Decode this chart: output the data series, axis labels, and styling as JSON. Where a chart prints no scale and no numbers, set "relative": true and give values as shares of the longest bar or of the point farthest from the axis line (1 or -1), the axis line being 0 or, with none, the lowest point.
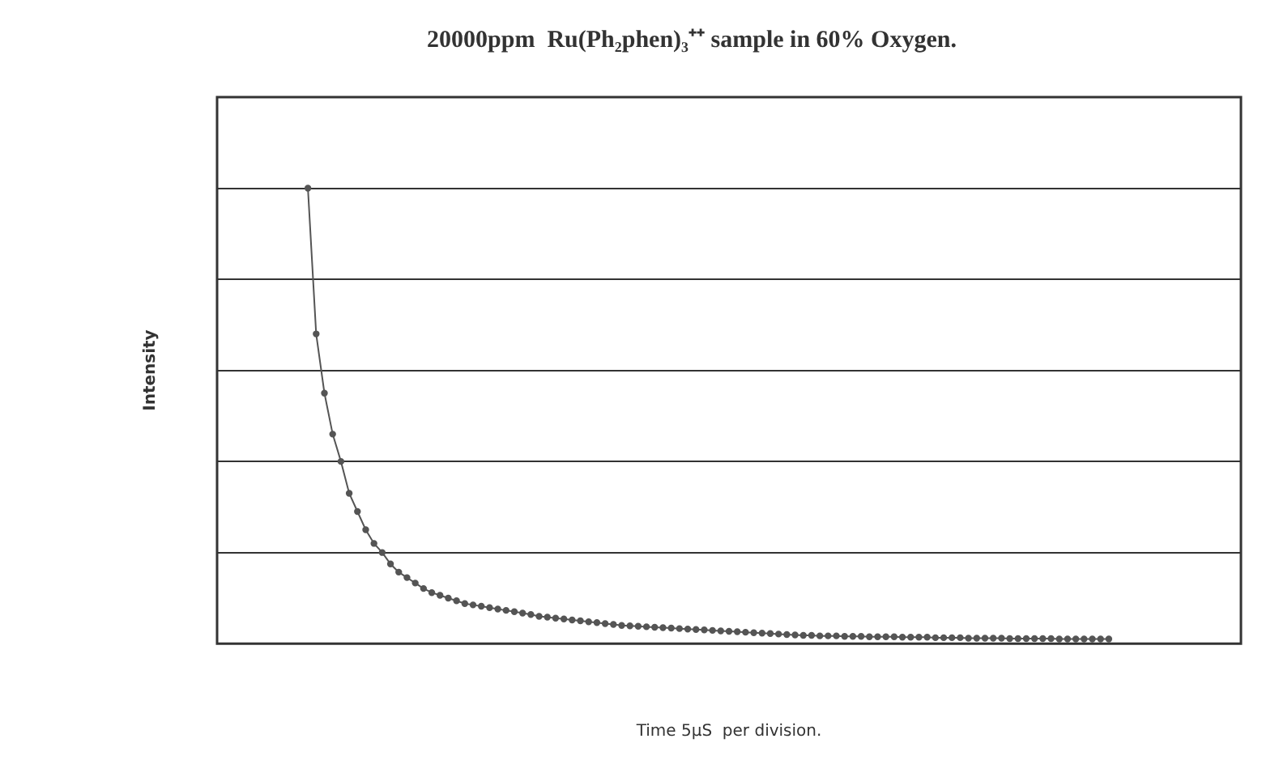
{
  "chart_data": {
    "type": "line",
    "title": "20000ppm  Ru(Ph₂phen)₃⁺⁺ sample in 60% Oxygen.",
    "xlabel": "Time 5µS  per division.",
    "ylabel": "Intensity",
    "relative": true,
    "grid": "y",
    "legend": false,
    "marker": "circle",
    "categories": [
      null,
      null,
      null,
      null,
      null,
      null,
      null,
      null,
      null,
      null,
      null,
      null,
      null,
      null,
      null,
      null,
      null,
      null,
      null,
      null,
      null,
      null,
      null,
      null,
      null,
      null,
      null,
      null,
      null,
      null,
      null,
      null,
      null,
      null,
      null,
      null,
      null,
      null,
      null,
      null,
      null,
      null,
      null,
      null,
      null,
      null,
      null,
      null,
      null,
      null,
      null,
      null,
      null,
      null,
      null,
      null,
      null,
      null,
      null,
      null,
      null,
      null,
      null,
      null,
      null,
      null,
      null,
      null,
      null,
      null,
      null,
      null,
      null,
      null,
      null,
      null,
      null,
      null,
      null,
      null,
      null,
      null,
      null,
      null,
      null,
      null,
      null,
      null,
      null,
      null,
      null,
      null,
      null,
      null,
      null,
      null,
      null,
      null,
      null,
      null,
      null,
      null,
      null,
      null,
      null,
      null,
      null,
      null,
      null,
      null,
      null,
      null,
      null,
      null,
      null,
      null,
      null,
      null,
      null,
      null,
      null,
      null,
      null,
      null,
      null
    ],
    "series": [
      {
        "color": "#555555",
        "values": [
          null,
          null,
          null,
          null,
          null,
          null,
          null,
          null,
          null,
          null,
          null,
          1.0,
          0.68,
          0.55,
          0.46,
          0.4,
          0.33,
          0.29,
          0.25,
          0.22,
          0.2,
          0.175,
          0.157,
          0.145,
          0.133,
          0.121,
          0.112,
          0.106,
          0.1,
          0.094,
          0.088,
          0.085,
          0.082,
          0.079,
          0.076,
          0.073,
          0.07,
          0.067,
          0.064,
          0.06,
          0.058,
          0.056,
          0.054,
          0.052,
          0.05,
          0.048,
          0.046,
          0.044,
          0.042,
          0.04,
          0.039,
          0.038,
          0.037,
          0.036,
          0.035,
          0.034,
          0.033,
          0.032,
          0.031,
          0.03,
          0.029,
          0.028,
          0.027,
          0.026,
          0.025,
          0.024,
          0.023,
          0.022,
          0.021,
          0.02,
          0.019,
          0.018,
          0.018,
          0.017,
          0.017,
          0.017,
          0.016,
          0.016,
          0.016,
          0.015,
          0.015,
          0.015,
          0.015,
          0.014,
          0.014,
          0.014,
          0.014,
          0.013,
          0.013,
          0.013,
          0.013,
          0.012,
          0.012,
          0.012,
          0.012,
          0.012,
          0.011,
          0.011,
          0.011,
          0.011,
          0.011,
          0.011,
          0.01,
          0.01,
          0.01,
          0.01,
          0.01,
          0.01,
          0.01,
          null,
          null,
          null,
          null,
          null,
          null,
          null,
          null,
          null,
          null,
          null,
          null,
          null,
          null,
          null,
          null
        ]
      }
    ]
  }
}
